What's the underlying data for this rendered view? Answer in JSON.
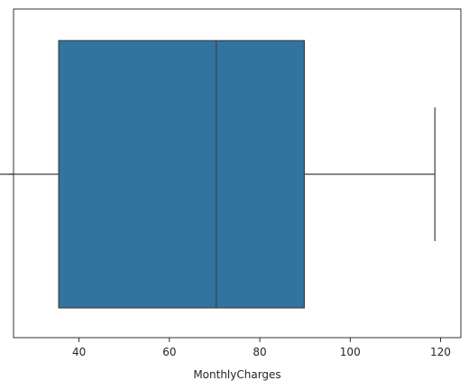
{
  "chart_data": {
    "type": "box",
    "xlabel": "MonthlyCharges",
    "ylabel": "",
    "xlim": [
      25.5,
      124.5
    ],
    "xticks": [
      40,
      60,
      80,
      100,
      120
    ],
    "box": {
      "whisker_low": 18.25,
      "q1": 35.5,
      "median": 70.35,
      "q3": 89.85,
      "whisker_high": 118.75
    },
    "box_color": "#3274a1",
    "line_color": "#3f3f3f",
    "grid": false
  }
}
